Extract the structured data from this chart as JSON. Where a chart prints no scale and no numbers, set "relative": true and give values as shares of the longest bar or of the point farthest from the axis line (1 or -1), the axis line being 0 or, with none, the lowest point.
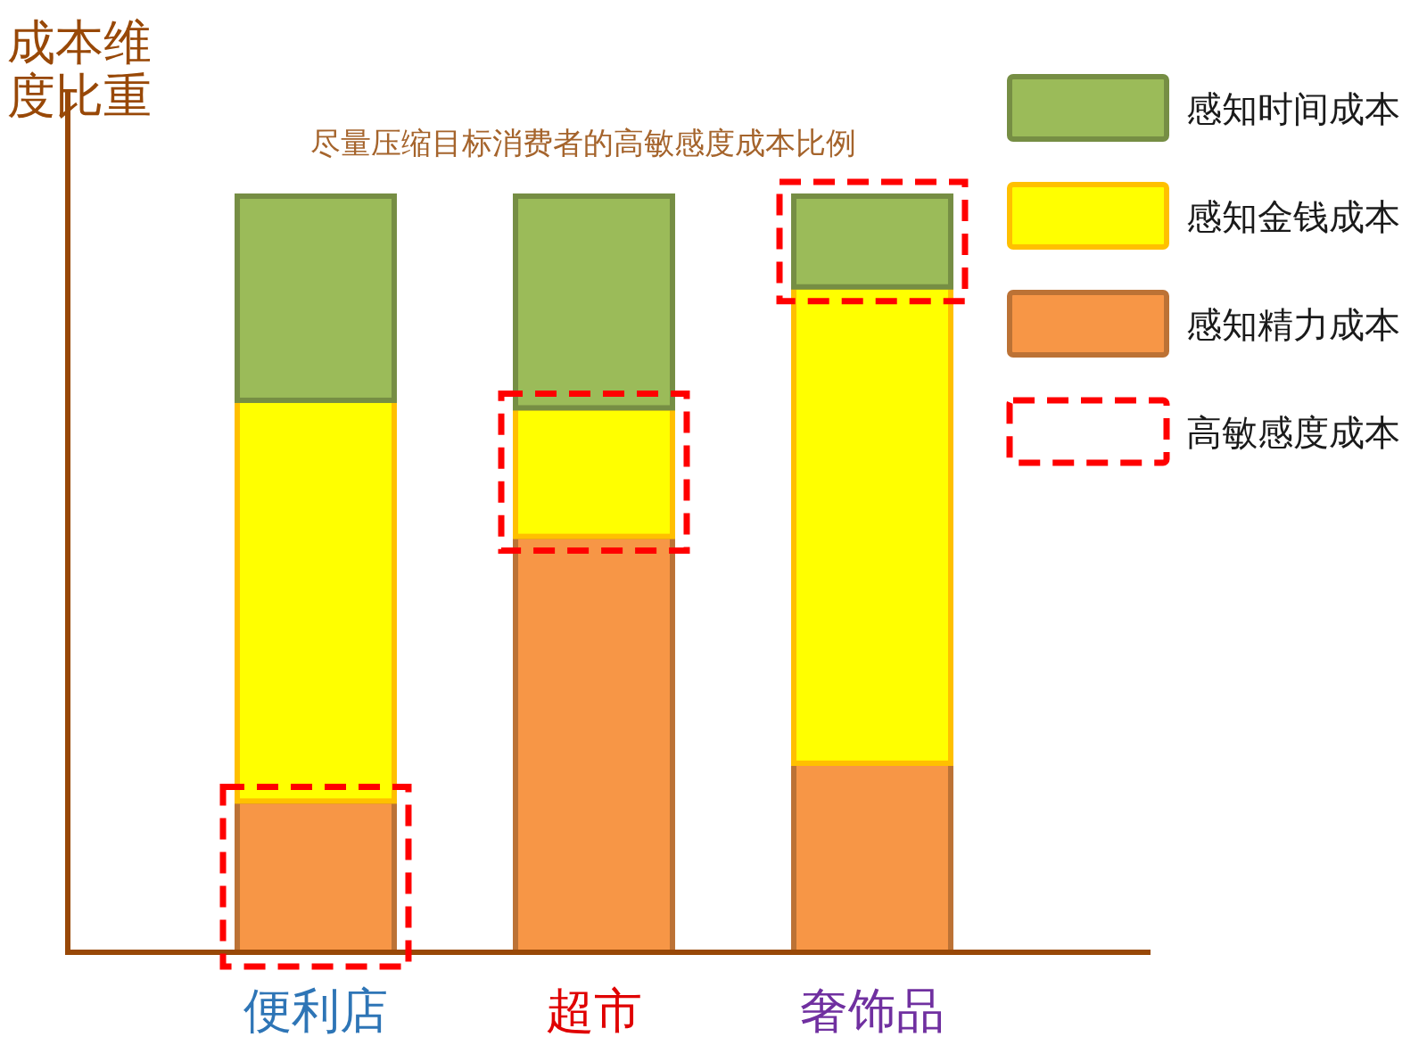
{
  "chart_data": {
    "type": "bar",
    "title": "尽量压缩目标消费者的高敏感度成本比例",
    "annotations": [
      "成本维度比重",
      "高敏感度成本"
    ],
    "categories": [
      "便利店",
      "超市",
      "奢饰品"
    ],
    "stacked": true,
    "relative": true,
    "legend": "top right",
    "series": [
      {
        "name": "感知精力成本",
        "color": "#f79646",
        "values": [
          0.2,
          0.55,
          0.25
        ]
      },
      {
        "name": "感知金钱成本",
        "color": "#ffff00",
        "values": [
          0.53,
          0.17,
          0.63
        ]
      },
      {
        "name": "感知时间成本",
        "color": "#9bbb59",
        "values": [
          0.27,
          0.28,
          0.12
        ]
      }
    ]
  }
}
